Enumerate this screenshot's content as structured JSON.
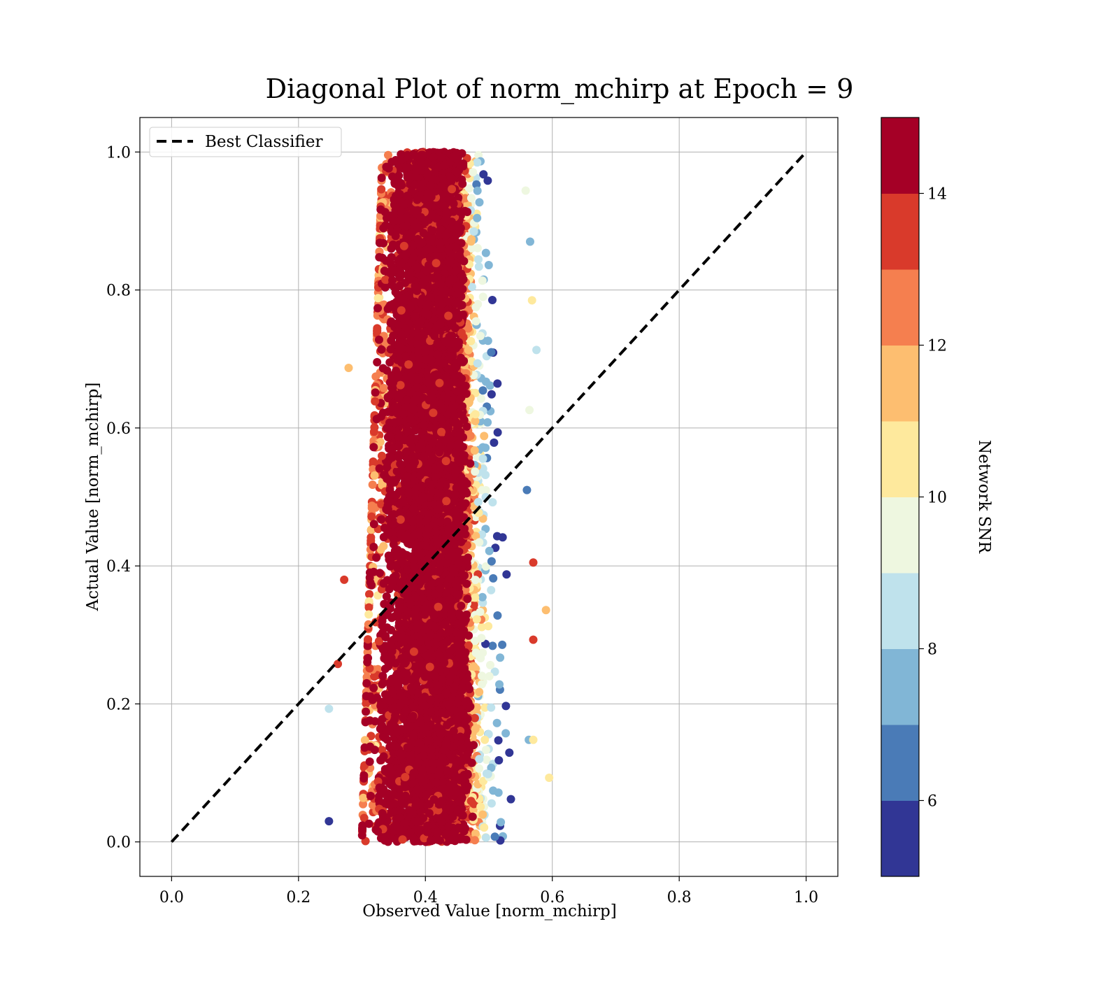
{
  "chart_data": {
    "type": "scatter",
    "title": "Diagonal Plot of norm_mchirp at Epoch = 9",
    "xlabel": "Observed Value [norm_mchirp]",
    "ylabel": "Actual Value [norm_mchirp]",
    "xlim": [
      -0.05,
      1.05
    ],
    "ylim": [
      -0.05,
      1.05
    ],
    "xticks": [
      "0.0",
      "0.2",
      "0.4",
      "0.6",
      "0.8",
      "1.0"
    ],
    "yticks": [
      "0.0",
      "0.2",
      "0.4",
      "0.6",
      "0.8",
      "1.0"
    ],
    "grid": true,
    "legend": {
      "position": "upper-left",
      "entries": [
        {
          "label": "Best Classifier",
          "style": "dashed",
          "color": "#000000"
        }
      ]
    },
    "reference_line": {
      "label": "Best Classifier",
      "x": [
        0.0,
        1.0
      ],
      "y": [
        0.0,
        1.0
      ]
    },
    "colorbar": {
      "label": "Network SNR",
      "range": [
        5,
        15
      ],
      "ticks": [
        "6",
        "8",
        "10",
        "12",
        "14"
      ],
      "bins": [
        {
          "from": 5,
          "to": 6,
          "color": "#313695"
        },
        {
          "from": 6,
          "to": 7,
          "color": "#4a7bb7"
        },
        {
          "from": 7,
          "to": 8,
          "color": "#81b6d6"
        },
        {
          "from": 8,
          "to": 9,
          "color": "#bfe2ec"
        },
        {
          "from": 9,
          "to": 10,
          "color": "#eef7e0"
        },
        {
          "from": 10,
          "to": 11,
          "color": "#fee99d"
        },
        {
          "from": 11,
          "to": 12,
          "color": "#fdbe70"
        },
        {
          "from": 12,
          "to": 13,
          "color": "#f57f4f"
        },
        {
          "from": 13,
          "to": 14,
          "color": "#d93a2b"
        },
        {
          "from": 14,
          "to": 15,
          "color": "#a50026"
        }
      ]
    },
    "scatter_distribution": {
      "actual_range": [
        0.0,
        1.0
      ],
      "observed_center": 0.415,
      "observed_halfwidth_low": 0.115,
      "observed_halfwidth_high": 0.06,
      "snr_trend": "low-SNR points lie at larger observed values"
    },
    "outliers": [
      {
        "x": 0.248,
        "y": 0.03,
        "snr": 5.5
      },
      {
        "x": 0.248,
        "y": 0.193,
        "snr": 8.5
      },
      {
        "x": 0.262,
        "y": 0.258,
        "snr": 13.8
      },
      {
        "x": 0.272,
        "y": 0.38,
        "snr": 13.5
      },
      {
        "x": 0.279,
        "y": 0.687,
        "snr": 11.5
      },
      {
        "x": 0.575,
        "y": 0.713,
        "snr": 8.5
      },
      {
        "x": 0.57,
        "y": 0.293,
        "snr": 13.8
      },
      {
        "x": 0.59,
        "y": 0.336,
        "snr": 11.8
      },
      {
        "x": 0.595,
        "y": 0.093,
        "snr": 10.5
      },
      {
        "x": 0.57,
        "y": 0.405,
        "snr": 13.8
      },
      {
        "x": 0.568,
        "y": 0.785,
        "snr": 10.5
      },
      {
        "x": 0.565,
        "y": 0.87,
        "snr": 7.5
      },
      {
        "x": 0.564,
        "y": 0.626,
        "snr": 9.5
      },
      {
        "x": 0.558,
        "y": 0.944,
        "snr": 9.5
      },
      {
        "x": 0.56,
        "y": 0.51,
        "snr": 6.5
      },
      {
        "x": 0.563,
        "y": 0.148,
        "snr": 7.5
      },
      {
        "x": 0.57,
        "y": 0.148,
        "snr": 10.5
      }
    ]
  }
}
